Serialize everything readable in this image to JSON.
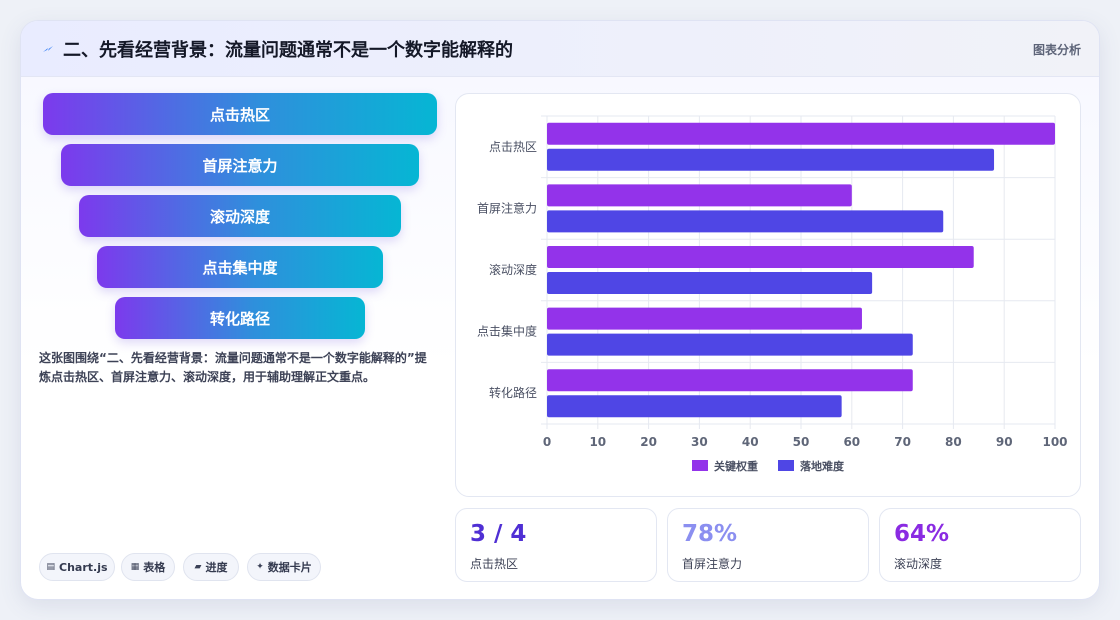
{
  "header": {
    "icon": "lightning-icon",
    "title": "二、先看经营背景：流量问题通常不是一个数字能解释的",
    "tag": "图表分析"
  },
  "funnel": {
    "steps": [
      "点击热区",
      "首屏注意力",
      "滚动深度",
      "点击集中度",
      "转化路径"
    ]
  },
  "description": "这张图围绕“二、先看经营背景：流量问题通常不是一个数字能解释的”提炼点击热区、首屏注意力、滚动深度，用于辅助理解正文重点。",
  "chips": [
    {
      "icon": "chart-icon",
      "glyph": "▤",
      "label": "Chart.js"
    },
    {
      "icon": "table-icon",
      "glyph": "▦",
      "label": "表格"
    },
    {
      "icon": "progress-icon",
      "glyph": "▰",
      "label": "进度"
    },
    {
      "icon": "card-icon",
      "glyph": "✦",
      "label": "数据卡片"
    }
  ],
  "stats": [
    {
      "value": "3 / 4",
      "label": "点击热区",
      "color": "#4f2fd4"
    },
    {
      "value": "78%",
      "label": "首屏注意力",
      "color": "#8b8ff0"
    },
    {
      "value": "64%",
      "label": "滚动深度",
      "color": "#8a2be2"
    }
  ],
  "colors": {
    "accent_purple": "#9333ea",
    "accent_indigo": "#4f46e5",
    "funnel_start": "#7c3aed",
    "funnel_end": "#06b6d4"
  },
  "chart_data": {
    "type": "bar",
    "orientation": "horizontal",
    "categories": [
      "点击热区",
      "首屏注意力",
      "滚动深度",
      "点击集中度",
      "转化路径"
    ],
    "series": [
      {
        "name": "关键权重",
        "color": "#9333ea",
        "values": [
          100,
          60,
          84,
          62,
          72
        ]
      },
      {
        "name": "落地难度",
        "color": "#4f46e5",
        "values": [
          88,
          78,
          64,
          72,
          58
        ]
      }
    ],
    "xlim": [
      0,
      100
    ],
    "xticks": [
      0,
      10,
      20,
      30,
      40,
      50,
      60,
      70,
      80,
      90,
      100
    ],
    "grid": true,
    "legend_position": "bottom"
  }
}
